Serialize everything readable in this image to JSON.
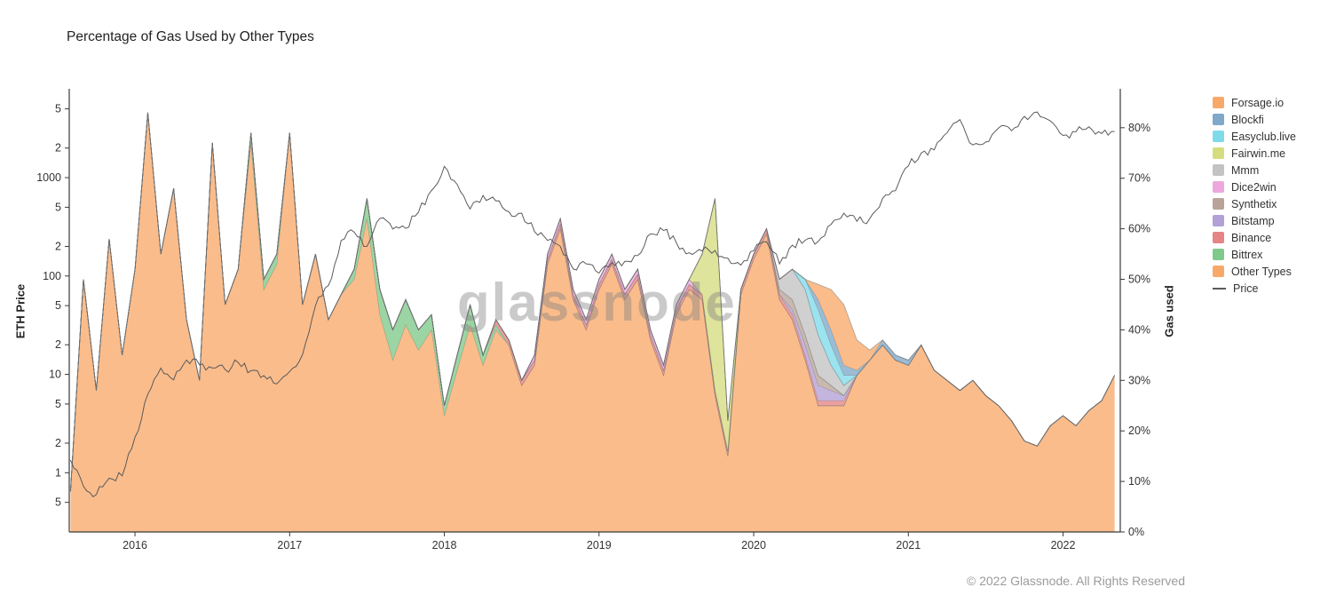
{
  "title": "Percentage of Gas Used by Other Types",
  "watermark": "glassnode",
  "footer": "© 2022 Glassnode. All Rights Reserved",
  "left_axis": {
    "label": "ETH Price",
    "scale": "log",
    "min": 0.25,
    "max": 8000,
    "ticks": [
      {
        "value": 5000,
        "label": "5"
      },
      {
        "value": 2000,
        "label": "2"
      },
      {
        "value": 1000,
        "label": "1000"
      },
      {
        "value": 500,
        "label": "5"
      },
      {
        "value": 200,
        "label": "2"
      },
      {
        "value": 100,
        "label": "100"
      },
      {
        "value": 50,
        "label": "5"
      },
      {
        "value": 20,
        "label": "2"
      },
      {
        "value": 10,
        "label": "10"
      },
      {
        "value": 5,
        "label": "5"
      },
      {
        "value": 2,
        "label": "2"
      },
      {
        "value": 1,
        "label": "1"
      },
      {
        "value": 0.5,
        "label": "5"
      }
    ]
  },
  "right_axis": {
    "label": "Gas used",
    "min": 0,
    "max": 87.7,
    "ticks": [
      {
        "value": 0,
        "label": "0%"
      },
      {
        "value": 10,
        "label": "10%"
      },
      {
        "value": 20,
        "label": "20%"
      },
      {
        "value": 30,
        "label": "30%"
      },
      {
        "value": 40,
        "label": "40%"
      },
      {
        "value": 50,
        "label": "50%"
      },
      {
        "value": 60,
        "label": "60%"
      },
      {
        "value": 70,
        "label": "70%"
      },
      {
        "value": 80,
        "label": "80%"
      }
    ]
  },
  "x_axis": {
    "min": 2015.575,
    "max": 2022.37,
    "ticks": [
      {
        "value": 2016,
        "label": "2016"
      },
      {
        "value": 2017,
        "label": "2017"
      },
      {
        "value": 2018,
        "label": "2018"
      },
      {
        "value": 2019,
        "label": "2019"
      },
      {
        "value": 2020,
        "label": "2020"
      },
      {
        "value": 2021,
        "label": "2021"
      },
      {
        "value": 2022,
        "label": "2022"
      }
    ]
  },
  "legend": [
    {
      "name": "Forsage.io",
      "color": "#f8a96a",
      "type": "area"
    },
    {
      "name": "Blockfi",
      "color": "#80a8c8",
      "type": "area"
    },
    {
      "name": "Easyclub.live",
      "color": "#7fdbea",
      "type": "area"
    },
    {
      "name": "Fairwin.me",
      "color": "#d5dd7f",
      "type": "area"
    },
    {
      "name": "Mmm",
      "color": "#c3c3c3",
      "type": "area"
    },
    {
      "name": "Dice2win",
      "color": "#eca8dc",
      "type": "area"
    },
    {
      "name": "Synthetix",
      "color": "#b8a498",
      "type": "area"
    },
    {
      "name": "Bitstamp",
      "color": "#b3a0d6",
      "type": "area"
    },
    {
      "name": "Binance",
      "color": "#e58585",
      "type": "area"
    },
    {
      "name": "Bittrex",
      "color": "#7fc98b",
      "type": "area"
    },
    {
      "name": "Other Types",
      "color": "#f8a96a",
      "type": "area"
    },
    {
      "name": "Price",
      "color": "#5a5a5a",
      "type": "line"
    }
  ],
  "chart_data": {
    "type": "area",
    "x_unit": "decimal_year",
    "y_unit_stack": "percent_gas_used",
    "y_unit_line": "usd_log",
    "x": [
      2015.583,
      2015.667,
      2015.75,
      2015.833,
      2015.917,
      2016,
      2016.083,
      2016.167,
      2016.25,
      2016.333,
      2016.417,
      2016.5,
      2016.583,
      2016.667,
      2016.75,
      2016.833,
      2016.917,
      2017,
      2017.083,
      2017.167,
      2017.25,
      2017.333,
      2017.417,
      2017.5,
      2017.583,
      2017.667,
      2017.75,
      2017.833,
      2017.917,
      2018,
      2018.083,
      2018.167,
      2018.25,
      2018.333,
      2018.417,
      2018.5,
      2018.583,
      2018.667,
      2018.75,
      2018.833,
      2018.917,
      2019,
      2019.083,
      2019.167,
      2019.25,
      2019.333,
      2019.417,
      2019.5,
      2019.583,
      2019.667,
      2019.75,
      2019.833,
      2019.917,
      2020,
      2020.083,
      2020.167,
      2020.25,
      2020.333,
      2020.417,
      2020.5,
      2020.583,
      2020.667,
      2020.75,
      2020.833,
      2020.917,
      2021,
      2021.083,
      2021.167,
      2021.25,
      2021.333,
      2021.417,
      2021.5,
      2021.583,
      2021.667,
      2021.75,
      2021.833,
      2021.917,
      2022,
      2022.083,
      2022.167,
      2022.25,
      2022.333
    ],
    "stack_series": [
      {
        "name": "Other Types",
        "color": "#f8a96a",
        "values": [
          8,
          50,
          28,
          58,
          35,
          52,
          83,
          55,
          68,
          42,
          30,
          77,
          45,
          52,
          77,
          48,
          53,
          79,
          45,
          55,
          42,
          47,
          50,
          62,
          43,
          34,
          41,
          36,
          40,
          23,
          32,
          41,
          33,
          40,
          37,
          29,
          33,
          53,
          60,
          46,
          40,
          48,
          53,
          46,
          50,
          38,
          31,
          43,
          48,
          46,
          27,
          15,
          47,
          54,
          59,
          46,
          42,
          34,
          25,
          25,
          25,
          31,
          34,
          37,
          34,
          33,
          37,
          32,
          30,
          28,
          30,
          27,
          25,
          22,
          18,
          17,
          21,
          23,
          21,
          24,
          26,
          31
        ]
      },
      {
        "name": "Bittrex",
        "color": "#7fc98b",
        "values": [
          0,
          0,
          0,
          0,
          0,
          0,
          0,
          0,
          0,
          0,
          0,
          0,
          0,
          0,
          2,
          2,
          2,
          0,
          0,
          0,
          0,
          0,
          2,
          4,
          5,
          6,
          5,
          4,
          3,
          2,
          3,
          4,
          2,
          1,
          0,
          0,
          0,
          0,
          0,
          0,
          0,
          0,
          0,
          0,
          0,
          0,
          0,
          0,
          0,
          0,
          0,
          0,
          0,
          0,
          0,
          0,
          0,
          0,
          0,
          0,
          0,
          0,
          0,
          0,
          0,
          0,
          0,
          0,
          0,
          0,
          0,
          0,
          0,
          0,
          0,
          0,
          0,
          0,
          0,
          0,
          0,
          0
        ]
      },
      {
        "name": "Binance",
        "color": "#e58585",
        "values": [
          0,
          0,
          0,
          0,
          0,
          0,
          0,
          0,
          0,
          0,
          0,
          0,
          0,
          0,
          0,
          0,
          0,
          0,
          0,
          0,
          0,
          0,
          0,
          0,
          0,
          0,
          0,
          0,
          0,
          0,
          0,
          0,
          0,
          1,
          1,
          1,
          1,
          1,
          1,
          1,
          1,
          1,
          1,
          1,
          1,
          1,
          1,
          1,
          1,
          1,
          1,
          1,
          1,
          1,
          1,
          1,
          1,
          1,
          1,
          1,
          1,
          0,
          0,
          0,
          0,
          0,
          0,
          0,
          0,
          0,
          0,
          0,
          0,
          0,
          0,
          0,
          0,
          0,
          0,
          0,
          0,
          0
        ]
      },
      {
        "name": "Bitstamp",
        "color": "#b3a0d6",
        "values": [
          0,
          0,
          0,
          0,
          0,
          0,
          0,
          0,
          0,
          0,
          0,
          0,
          0,
          0,
          0,
          0,
          0,
          0,
          0,
          0,
          0,
          0,
          0,
          0,
          0,
          0,
          0,
          0,
          0,
          0,
          0,
          0,
          0,
          0,
          0,
          0,
          0,
          0,
          0,
          0,
          0,
          0,
          0,
          0,
          0,
          0,
          0,
          0,
          0,
          0,
          0,
          0,
          0,
          0,
          0,
          0,
          1,
          2,
          3,
          2,
          1,
          0,
          0,
          0,
          0,
          0,
          0,
          0,
          0,
          0,
          0,
          0,
          0,
          0,
          0,
          0,
          0,
          0,
          0,
          0,
          0,
          0
        ]
      },
      {
        "name": "Synthetix",
        "color": "#b8a498",
        "values": [
          0,
          0,
          0,
          0,
          0,
          0,
          0,
          0,
          0,
          0,
          0,
          0,
          0,
          0,
          0,
          0,
          0,
          0,
          0,
          0,
          0,
          0,
          0,
          0,
          0,
          0,
          0,
          0,
          0,
          0,
          0,
          0,
          0,
          0,
          0,
          0,
          0,
          0,
          0,
          0,
          0,
          0,
          0,
          0,
          0,
          0,
          0,
          0,
          0,
          0,
          0,
          0,
          0,
          0,
          0,
          1,
          2,
          2,
          2,
          1,
          0,
          0,
          0,
          0,
          0,
          0,
          0,
          0,
          0,
          0,
          0,
          0,
          0,
          0,
          0,
          0,
          0,
          0,
          0,
          0,
          0,
          0
        ]
      },
      {
        "name": "Dice2win",
        "color": "#eca8dc",
        "values": [
          0,
          0,
          0,
          0,
          0,
          0,
          0,
          0,
          0,
          0,
          0,
          0,
          0,
          0,
          0,
          0,
          0,
          0,
          0,
          0,
          0,
          0,
          0,
          0,
          0,
          0,
          0,
          0,
          0,
          0,
          0,
          0,
          0,
          0,
          0,
          0,
          1,
          1,
          1,
          1,
          1,
          1,
          1,
          1,
          1,
          1,
          1,
          1,
          1,
          0,
          0,
          0,
          0,
          0,
          0,
          0,
          0,
          0,
          0,
          0,
          0,
          0,
          0,
          0,
          0,
          0,
          0,
          0,
          0,
          0,
          0,
          0,
          0,
          0,
          0,
          0,
          0,
          0,
          0,
          0,
          0,
          0
        ]
      },
      {
        "name": "Mmm",
        "color": "#c3c3c3",
        "values": [
          0,
          0,
          0,
          0,
          0,
          0,
          0,
          0,
          0,
          0,
          0,
          0,
          0,
          0,
          0,
          0,
          0,
          0,
          0,
          0,
          0,
          0,
          0,
          0,
          0,
          0,
          0,
          0,
          0,
          0,
          0,
          0,
          0,
          0,
          0,
          0,
          0,
          0,
          0,
          0,
          0,
          0,
          0,
          0,
          0,
          0,
          0,
          0,
          0,
          0,
          0,
          0,
          0,
          0,
          0,
          2,
          6,
          9,
          8,
          4,
          2,
          0,
          0,
          0,
          0,
          0,
          0,
          0,
          0,
          0,
          0,
          0,
          0,
          0,
          0,
          0,
          0,
          0,
          0,
          0,
          0,
          0
        ]
      },
      {
        "name": "Fairwin.me",
        "color": "#d5dd7f",
        "values": [
          0,
          0,
          0,
          0,
          0,
          0,
          0,
          0,
          0,
          0,
          0,
          0,
          0,
          0,
          0,
          0,
          0,
          0,
          0,
          0,
          0,
          0,
          0,
          0,
          0,
          0,
          0,
          0,
          0,
          0,
          0,
          0,
          0,
          0,
          0,
          0,
          0,
          0,
          0,
          0,
          0,
          0,
          0,
          0,
          0,
          0,
          0,
          0,
          0,
          8,
          38,
          6,
          0,
          0,
          0,
          0,
          0,
          0,
          0,
          0,
          0,
          0,
          0,
          0,
          0,
          0,
          0,
          0,
          0,
          0,
          0,
          0,
          0,
          0,
          0,
          0,
          0,
          0,
          0,
          0,
          0,
          0
        ]
      },
      {
        "name": "Easyclub.live",
        "color": "#7fdbea",
        "values": [
          0,
          0,
          0,
          0,
          0,
          0,
          0,
          0,
          0,
          0,
          0,
          0,
          0,
          0,
          0,
          0,
          0,
          0,
          0,
          0,
          0,
          0,
          0,
          0,
          0,
          0,
          0,
          0,
          0,
          0,
          0,
          0,
          0,
          0,
          0,
          0,
          0,
          0,
          0,
          0,
          0,
          0,
          0,
          0,
          0,
          0,
          0,
          0,
          0,
          0,
          0,
          0,
          0,
          0,
          0,
          0,
          0,
          2,
          5,
          4,
          2,
          0,
          0,
          0,
          0,
          0,
          0,
          0,
          0,
          0,
          0,
          0,
          0,
          0,
          0,
          0,
          0,
          0,
          0,
          0,
          0,
          0
        ]
      },
      {
        "name": "Blockfi",
        "color": "#80a8c8",
        "values": [
          0,
          0,
          0,
          0,
          0,
          0,
          0,
          0,
          0,
          0,
          0,
          0,
          0,
          0,
          0,
          0,
          0,
          0,
          0,
          0,
          0,
          0,
          0,
          0,
          0,
          0,
          0,
          0,
          0,
          0,
          0,
          0,
          0,
          0,
          0,
          0,
          0,
          0,
          0,
          0,
          0,
          0,
          0,
          0,
          0,
          0,
          0,
          0,
          0,
          0,
          0,
          0,
          0,
          0,
          0,
          0,
          0,
          0,
          2,
          3,
          2,
          1,
          0,
          1,
          1,
          1,
          0,
          0,
          0,
          0,
          0,
          0,
          0,
          0,
          0,
          0,
          0,
          0,
          0,
          0,
          0,
          0
        ]
      },
      {
        "name": "Forsage.io",
        "color": "#f8a96a",
        "values": [
          0,
          0,
          0,
          0,
          0,
          0,
          0,
          0,
          0,
          0,
          0,
          0,
          0,
          0,
          0,
          0,
          0,
          0,
          0,
          0,
          0,
          0,
          0,
          0,
          0,
          0,
          0,
          0,
          0,
          0,
          0,
          0,
          0,
          0,
          0,
          0,
          0,
          0,
          0,
          0,
          0,
          0,
          0,
          0,
          0,
          0,
          0,
          0,
          0,
          0,
          0,
          0,
          0,
          0,
          0,
          0,
          0,
          0,
          3,
          8,
          12,
          6,
          2,
          0,
          0,
          0,
          0,
          0,
          0,
          0,
          0,
          0,
          0,
          0,
          0,
          0,
          0,
          0,
          0,
          0,
          0,
          0
        ]
      }
    ],
    "price": {
      "name": "Price",
      "color": "#5a5a5a",
      "axis": "left",
      "values": [
        1.35,
        0.73,
        0.6,
        0.88,
        0.93,
        2.3,
        6.3,
        11.6,
        8.8,
        14,
        12.5,
        11.6,
        11.2,
        13.2,
        10.9,
        9.7,
        8,
        10.7,
        15.9,
        50,
        80,
        230,
        280,
        200,
        385,
        300,
        305,
        445,
        740,
        1300,
        855,
        480,
        660,
        580,
        450,
        435,
        283,
        230,
        200,
        118,
        133,
        107,
        137,
        141,
        162,
        268,
        290,
        218,
        172,
        180,
        182,
        152,
        129,
        180,
        223,
        133,
        206,
        231,
        225,
        335,
        435,
        360,
        383,
        615,
        737,
        1314,
        1780,
        1918,
        2850,
        3900,
        2150,
        2300,
        3200,
        3000,
        4200,
        4650,
        3780,
        2688,
        2920,
        3283,
        2815,
        2950
      ]
    }
  }
}
